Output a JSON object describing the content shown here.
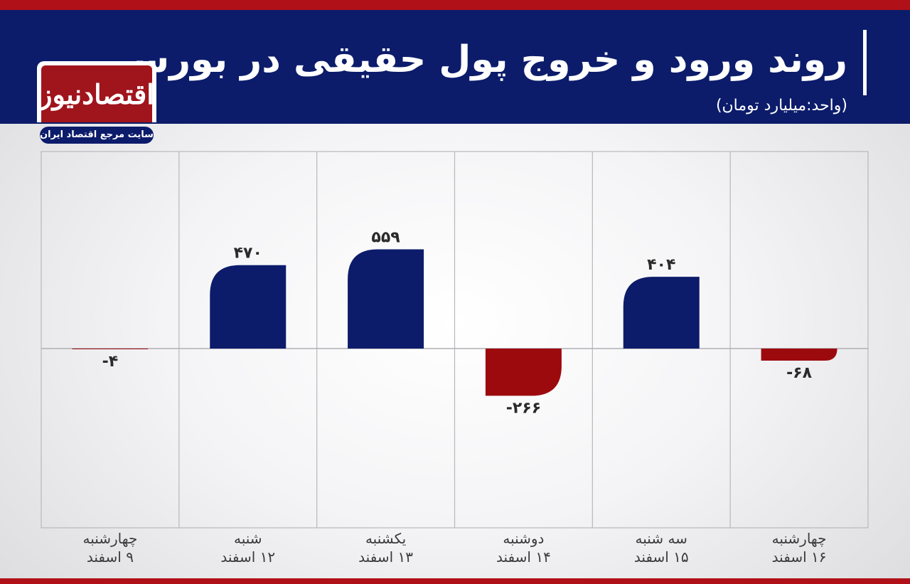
{
  "header": {
    "title": "روند ورود و خروج پول حقیقی در بورس",
    "unit": "(واحد:میلیارد تومان)"
  },
  "logo": {
    "name": "اقتصادنیوز",
    "tagline": "سایت مرجع اقتصاد ایران"
  },
  "colors": {
    "positive": "#0c1c6b",
    "negative": "#9c0a0e",
    "header_bg": "#0c1c6b",
    "accent_red": "#b01018"
  },
  "chart_data": {
    "type": "bar",
    "categories": [
      [
        "چهارشنبه",
        "۹ اسفند"
      ],
      [
        "شنبه",
        "۱۲ اسفند"
      ],
      [
        "یکشنبه",
        "۱۳ اسفند"
      ],
      [
        "دوشنبه",
        "۱۴ اسفند"
      ],
      [
        "سه شنبه",
        "۱۵ اسفند"
      ],
      [
        "چهارشنبه",
        "۱۶ اسفند"
      ]
    ],
    "values": [
      -4,
      470,
      559,
      -266,
      404,
      -68
    ],
    "value_labels": [
      "-۴",
      "۴۷۰",
      "۵۵۹",
      "-۲۶۶",
      "۴۰۴",
      "-۶۸"
    ],
    "ylim": [
      -1000,
      1110
    ],
    "grid": true,
    "legend": "none"
  }
}
